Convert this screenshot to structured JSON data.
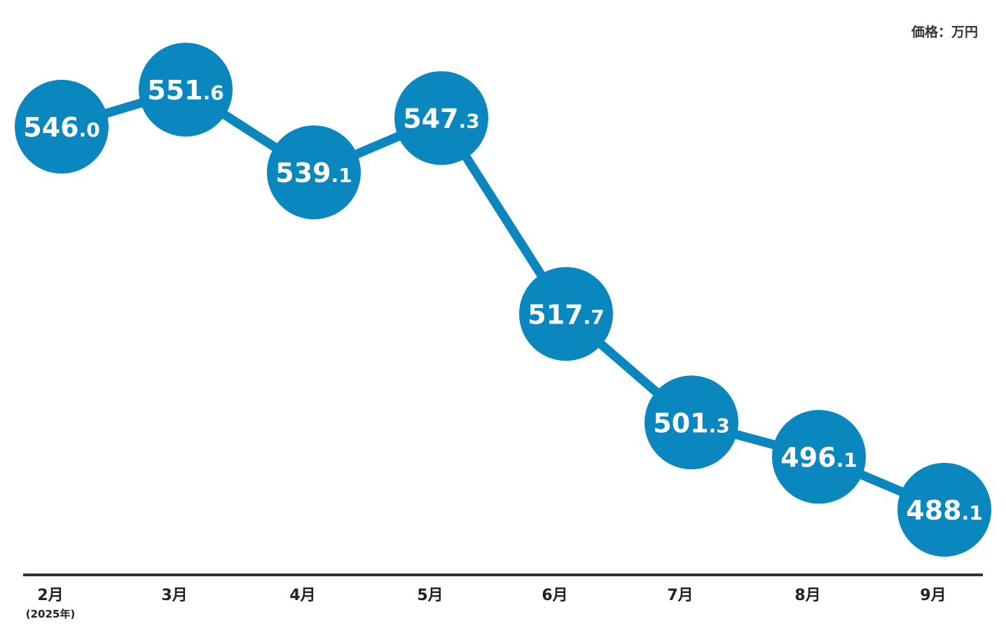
{
  "chart_data": {
    "type": "line",
    "unit_label": "価格：万円",
    "categories": [
      "2月",
      "3月",
      "4月",
      "5月",
      "6月",
      "7月",
      "8月",
      "9月"
    ],
    "category_sublabels": [
      "(2025年)",
      "",
      "",
      "",
      "",
      "",
      "",
      ""
    ],
    "values": [
      546.0,
      551.6,
      539.1,
      547.3,
      517.7,
      501.3,
      496.1,
      488.1
    ],
    "value_labels": [
      "546.0",
      "551.6",
      "539.1",
      "547.3",
      "517.7",
      "501.3",
      "496.1",
      "488.1"
    ],
    "xlabel": "",
    "ylabel": "",
    "grid": false
  },
  "colors": {
    "accent": "#0a87bf",
    "axis": "#333333",
    "label": "#ffffff"
  }
}
